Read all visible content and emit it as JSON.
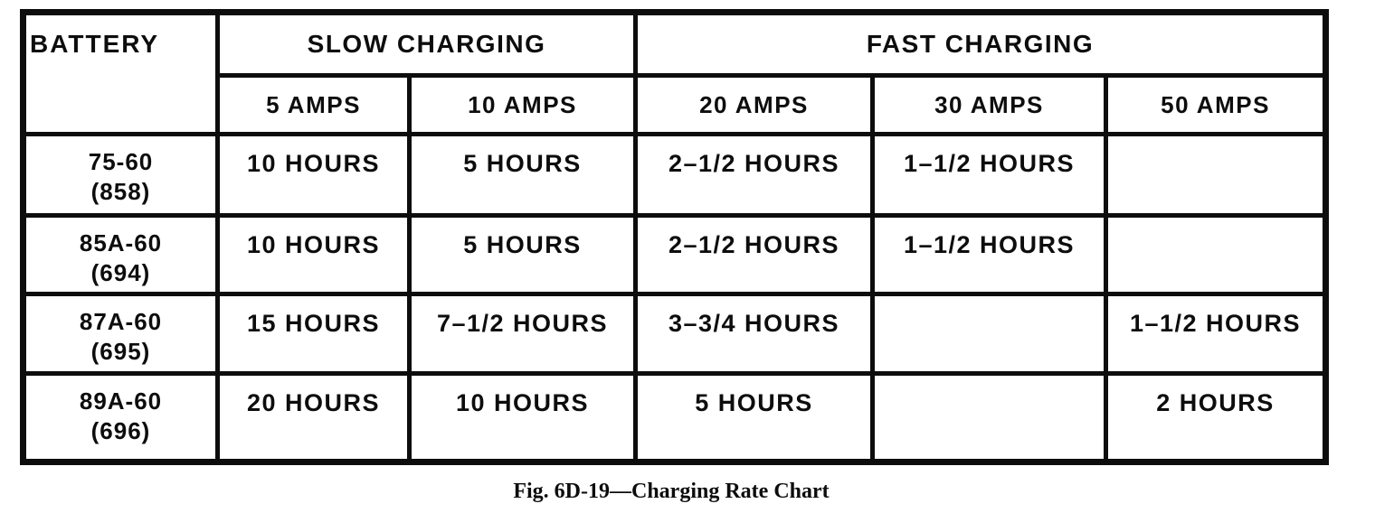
{
  "figure_table": {
    "headers": {
      "battery": "BATTERY",
      "slow_charging": "SLOW CHARGING",
      "fast_charging": "FAST CHARGING",
      "amp_columns": [
        "5 AMPS",
        "10 AMPS",
        "20 AMPS",
        "30 AMPS",
        "50 AMPS"
      ]
    },
    "rows": [
      {
        "model": "75-60",
        "part_number": "(858)",
        "amps_5": "10 HOURS",
        "amps_10": "5 HOURS",
        "amps_20": "2–1/2 HOURS",
        "amps_30": "1–1/2 HOURS",
        "amps_50": ""
      },
      {
        "model": "85A-60",
        "part_number": "(694)",
        "amps_5": "10 HOURS",
        "amps_10": "5 HOURS",
        "amps_20": "2–1/2 HOURS",
        "amps_30": "1–1/2 HOURS",
        "amps_50": ""
      },
      {
        "model": "87A-60",
        "part_number": "(695)",
        "amps_5": "15 HOURS",
        "amps_10": "7–1/2 HOURS",
        "amps_20": "3–3/4 HOURS",
        "amps_30": "",
        "amps_50": "1–1/2 HOURS"
      },
      {
        "model": "89A-60",
        "part_number": "(696)",
        "amps_5": "20 HOURS",
        "amps_10": "10 HOURS",
        "amps_20": "5 HOURS",
        "amps_30": "",
        "amps_50": "2 HOURS"
      }
    ]
  },
  "caption": "Fig. 6D-19—Charging Rate Chart",
  "colors": {
    "ink": "#0d0d0d",
    "paper": "#ffffff"
  },
  "chart_data": {
    "type": "table",
    "title": "Fig. 6D-19—Charging Rate Chart",
    "column_groups": [
      "BATTERY",
      "SLOW CHARGING",
      "FAST CHARGING"
    ],
    "columns": [
      "BATTERY",
      "SLOW CHARGING 5 AMPS",
      "SLOW CHARGING 10 AMPS",
      "FAST CHARGING 20 AMPS",
      "FAST CHARGING 30 AMPS",
      "FAST CHARGING 50 AMPS"
    ],
    "rows": [
      [
        "75-60 (858)",
        "10 HOURS",
        "5 HOURS",
        "2–1/2 HOURS",
        "1–1/2 HOURS",
        ""
      ],
      [
        "85A-60 (694)",
        "10 HOURS",
        "5 HOURS",
        "2–1/2 HOURS",
        "1–1/2 HOURS",
        ""
      ],
      [
        "87A-60 (695)",
        "15 HOURS",
        "7–1/2 HOURS",
        "3–3/4 HOURS",
        "",
        "1–1/2 HOURS"
      ],
      [
        "89A-60 (696)",
        "20 HOURS",
        "10 HOURS",
        "5 HOURS",
        "",
        "2 HOURS"
      ]
    ]
  }
}
